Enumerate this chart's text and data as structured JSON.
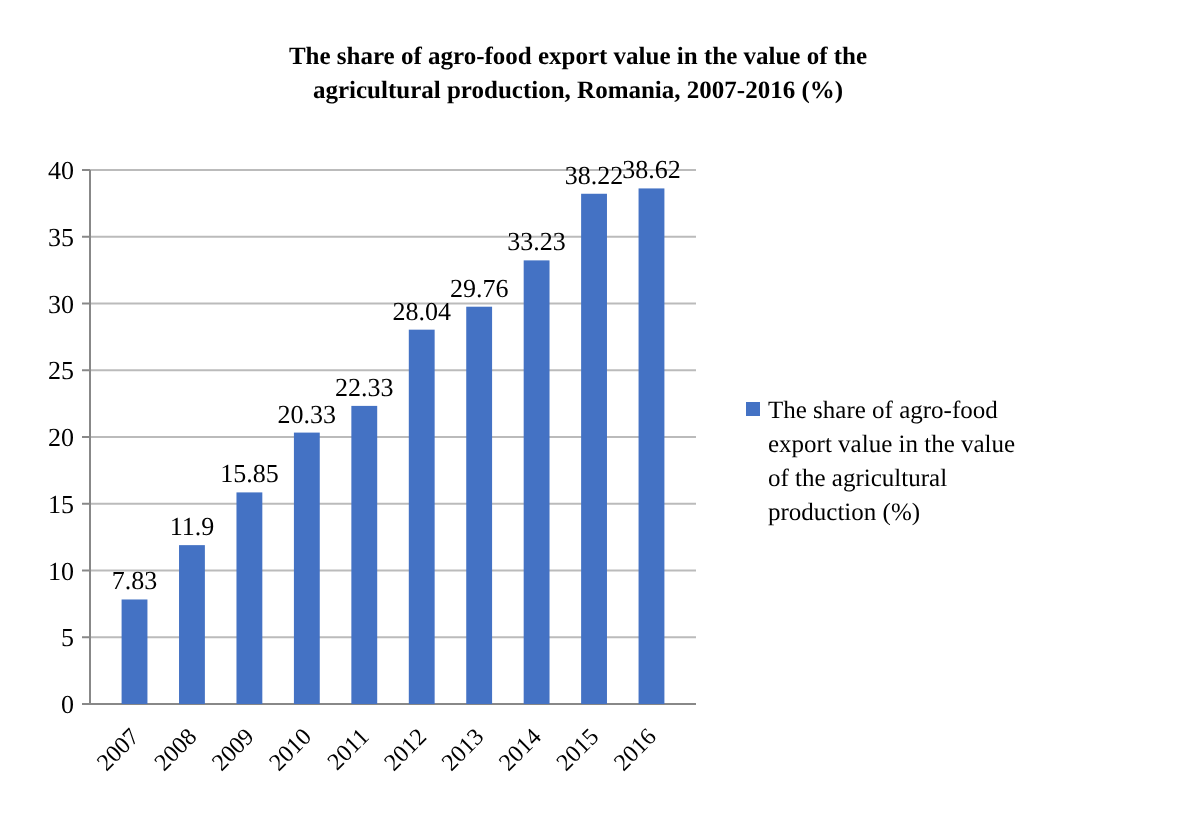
{
  "chart_data": {
    "type": "bar",
    "title": "The share of agro-food export value in the value of the agricultural production, Romania, 2007-2016 (%)",
    "categories": [
      "2007",
      "2008",
      "2009",
      "2010",
      "2011",
      "2012",
      "2013",
      "2014",
      "2015",
      "2016"
    ],
    "series": [
      {
        "name": "The share of agro-food export value in the value of the agricultural production (%)",
        "color": "#4472c4",
        "values": [
          7.83,
          11.9,
          15.85,
          20.33,
          22.33,
          28.04,
          29.76,
          33.23,
          38.22,
          38.62
        ]
      }
    ],
    "ylim": [
      0,
      40
    ],
    "yticks": [
      0,
      5,
      10,
      15,
      20,
      25,
      30,
      35,
      40
    ],
    "grid": "y",
    "legend": "right",
    "data_labels": true
  }
}
